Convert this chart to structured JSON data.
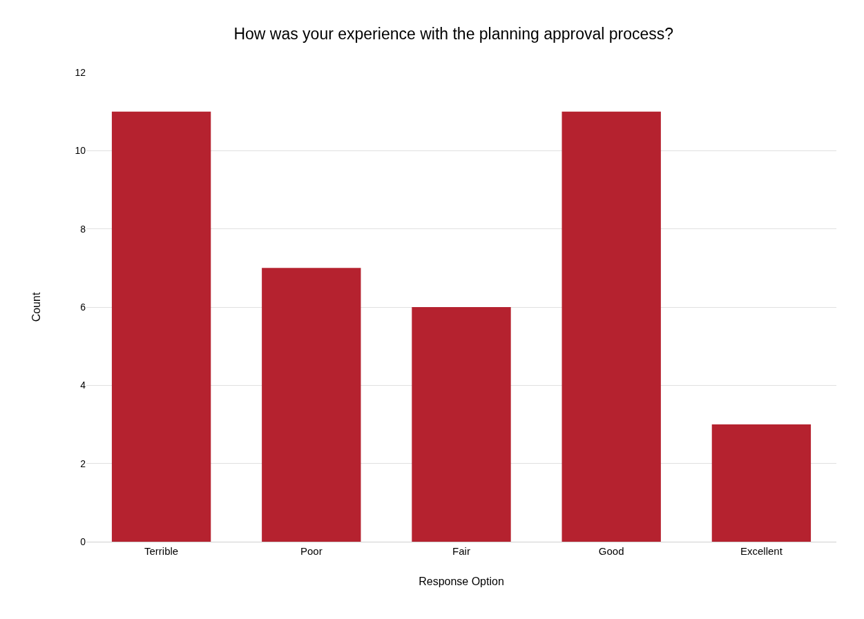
{
  "chart_data": {
    "type": "bar",
    "title": "How was your experience with the planning approval process?",
    "xlabel": "Response Option",
    "ylabel": "Count",
    "categories": [
      "Terrible",
      "Poor",
      "Fair",
      "Good",
      "Excellent"
    ],
    "values": [
      11,
      7,
      6,
      11,
      3
    ],
    "color": "#b5222f",
    "ylim": [
      0,
      12
    ],
    "yticks": [
      0,
      2,
      4,
      6,
      8,
      10,
      12
    ],
    "grid": "y"
  }
}
